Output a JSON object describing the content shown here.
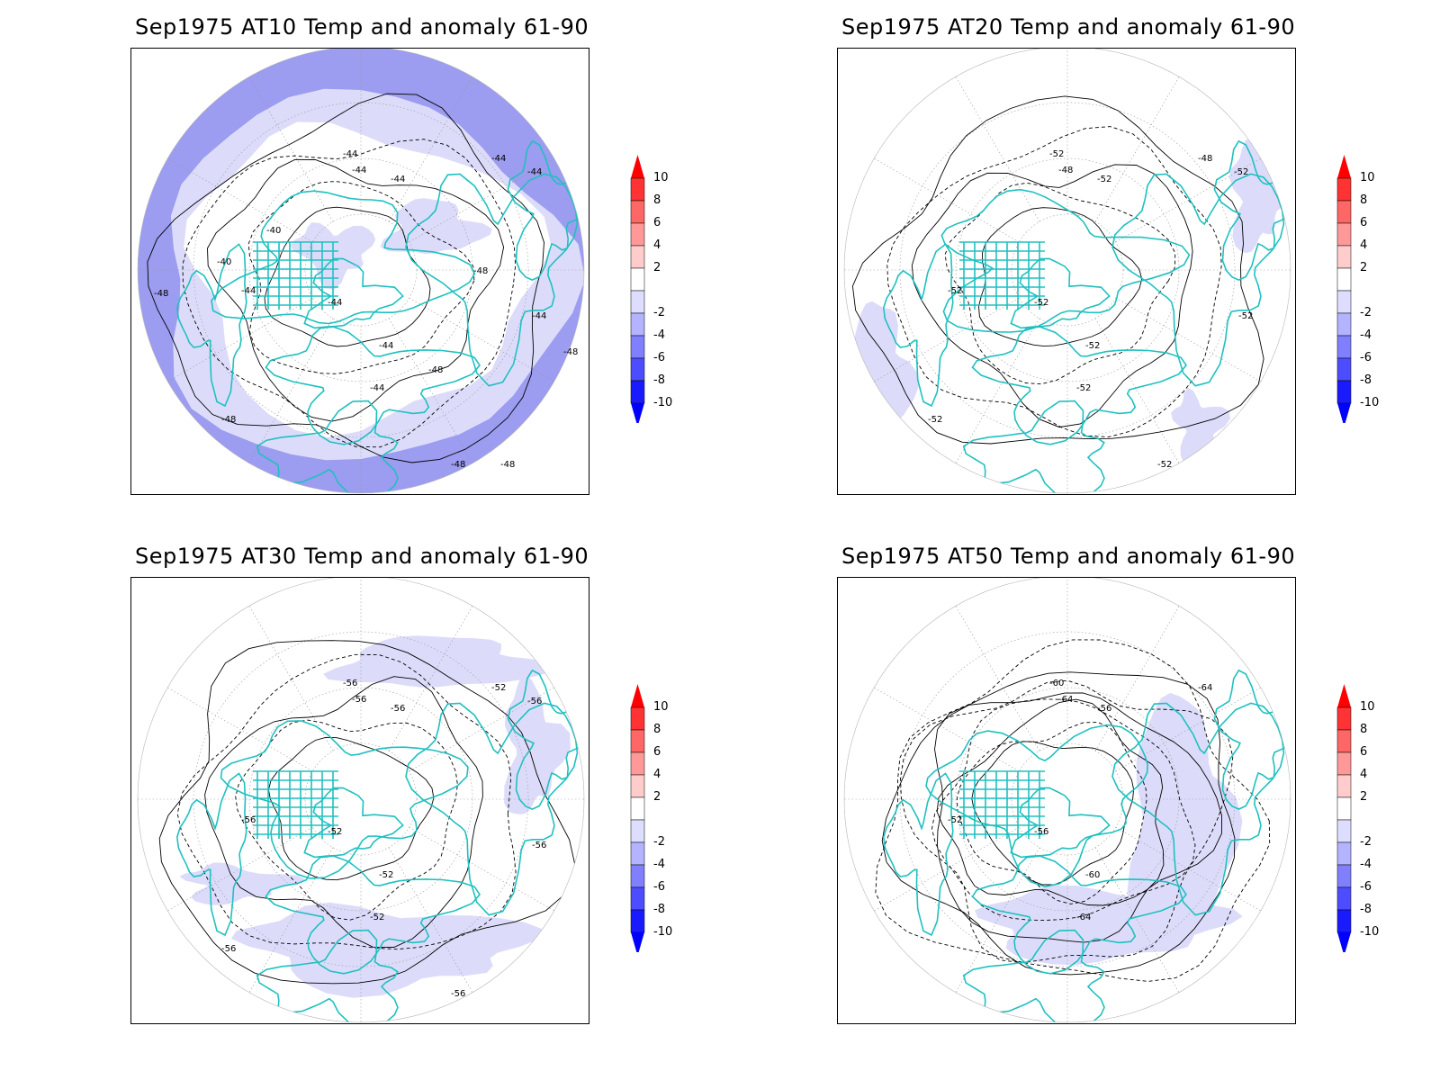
{
  "panels": [
    {
      "title": "Sep1975 AT10 Temp and anomaly 61-90",
      "contour_labels": [
        "-44",
        "-44",
        "-44",
        "-44",
        "-44",
        "-44",
        "-44",
        "-44",
        "-44",
        "-44",
        "-48",
        "-48",
        "-48",
        "-48",
        "-48",
        "-48",
        "-48",
        "-40",
        "-40"
      ],
      "anomaly_fill": "strong"
    },
    {
      "title": "Sep1975 AT20 Temp and anomaly 61-90",
      "contour_labels": [
        "-52",
        "-48",
        "-52",
        "-52",
        "-52",
        "-52",
        "-52",
        "-48",
        "-52",
        "-52",
        "-52",
        "-52"
      ],
      "anomaly_fill": "light"
    },
    {
      "title": "Sep1975 AT30 Temp and anomaly 61-90",
      "contour_labels": [
        "-56",
        "-56",
        "-56",
        "-56",
        "-52",
        "-52",
        "-52",
        "-52",
        "-56",
        "-56",
        "-56",
        "-56"
      ],
      "anomaly_fill": "light"
    },
    {
      "title": "Sep1975 AT50 Temp and anomaly 61-90",
      "contour_labels": [
        "-60",
        "-64",
        "-56",
        "-52",
        "-56",
        "-60",
        "-64",
        "-64"
      ],
      "anomaly_fill": "medium"
    }
  ],
  "colorbar": {
    "labels": [
      "10",
      "8",
      "6",
      "4",
      "2",
      "-2",
      "-4",
      "-6",
      "-8",
      "-10"
    ],
    "colors": [
      "#ff3333",
      "#ff6666",
      "#ff9999",
      "#ffcccc",
      "#ffffff",
      "#ddddff",
      "#b3b3ff",
      "#8080ff",
      "#4d4dff",
      "#1a1aff"
    ],
    "top_arrow": "#ff0000",
    "bottom_arrow": "#0000ff"
  },
  "colors": {
    "coastline": "#20c0c0",
    "contour": "#000000",
    "grid": "#999999",
    "anomaly_light": "#dcdcfa",
    "anomaly_medium": "#b8b8f5",
    "anomaly_strong": "#9c9cf0"
  }
}
